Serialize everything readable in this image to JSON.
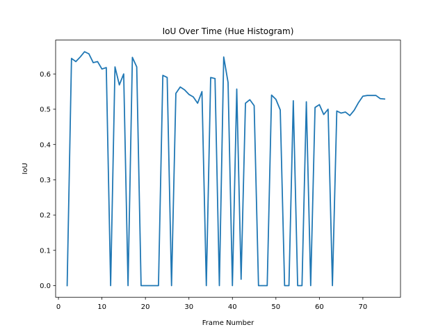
{
  "chart_data": {
    "type": "line",
    "title": "IoU Over Time (Hue Histogram)",
    "xlabel": "Frame Number",
    "ylabel": "IoU",
    "xlim": [
      -0.65,
      78.65
    ],
    "ylim": [
      -0.033,
      0.696
    ],
    "xticks": [
      0,
      10,
      20,
      30,
      40,
      50,
      60,
      70
    ],
    "yticks": [
      0.0,
      0.1,
      0.2,
      0.3,
      0.4,
      0.5,
      0.6
    ],
    "ytick_labels": [
      "0.0",
      "0.1",
      "0.2",
      "0.3",
      "0.4",
      "0.5",
      "0.6"
    ],
    "grid": false,
    "series_color": "#1f77b4",
    "x": [
      2,
      3,
      4,
      5,
      6,
      7,
      8,
      9,
      10,
      11,
      12,
      13,
      14,
      15,
      16,
      17,
      18,
      19,
      20,
      21,
      22,
      23,
      24,
      25,
      26,
      27,
      28,
      29,
      30,
      31,
      32,
      33,
      34,
      35,
      36,
      37,
      38,
      39,
      40,
      41,
      42,
      43,
      44,
      45,
      46,
      47,
      48,
      49,
      50,
      51,
      52,
      53,
      54,
      55,
      56,
      57,
      58,
      59,
      60,
      61,
      62,
      63,
      64,
      65,
      66,
      67,
      68,
      69,
      70,
      71,
      72,
      73,
      74,
      75
    ],
    "y": [
      0.0,
      0.644,
      0.635,
      0.648,
      0.663,
      0.657,
      0.632,
      0.635,
      0.614,
      0.618,
      0.0,
      0.62,
      0.569,
      0.6,
      0.0,
      0.647,
      0.62,
      0.0,
      0.0,
      0.0,
      0.0,
      0.0,
      0.596,
      0.59,
      0.0,
      0.545,
      0.563,
      0.555,
      0.542,
      0.535,
      0.517,
      0.55,
      0.0,
      0.59,
      0.587,
      0.0,
      0.648,
      0.576,
      0.0,
      0.557,
      0.018,
      0.517,
      0.527,
      0.51,
      0.0,
      0.0,
      0.0,
      0.54,
      0.528,
      0.498,
      0.0,
      0.0,
      0.524,
      0.0,
      0.0,
      0.521,
      0.0,
      0.505,
      0.513,
      0.485,
      0.5,
      0.0,
      0.495,
      0.489,
      0.492,
      0.482,
      0.497,
      0.519,
      0.537,
      0.539,
      0.539,
      0.539,
      0.53,
      0.529
    ]
  }
}
